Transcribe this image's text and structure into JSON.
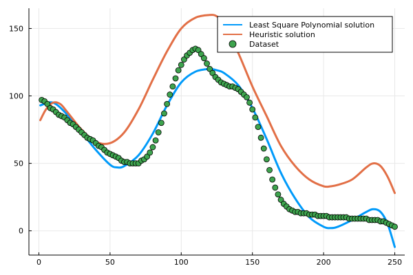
{
  "chart_data": {
    "type": "line",
    "title": "",
    "xlabel": "",
    "ylabel": "",
    "xlim": [
      -7,
      257
    ],
    "ylim": [
      -18,
      165
    ],
    "xticks": [
      0,
      50,
      100,
      150,
      200,
      250
    ],
    "yticks": [
      0,
      50,
      100,
      150
    ],
    "grid": true,
    "legend_position": "top-right",
    "colors": {
      "poly": "#009AFA",
      "heuristic": "#E26F46",
      "dataset": "#3EA44E",
      "marker_edge": "#000000",
      "grid": "#e8e8e8",
      "axis": "#000000"
    },
    "series": [
      {
        "name": "Least Square Polynomial solution",
        "kind": "line",
        "x": [
          1,
          10,
          20,
          30,
          40,
          50,
          55,
          60,
          70,
          80,
          90,
          100,
          110,
          120,
          125,
          130,
          140,
          150,
          160,
          170,
          180,
          190,
          200,
          205,
          210,
          220,
          230,
          235,
          240,
          245,
          250
        ],
        "y": [
          93,
          95,
          86,
          73,
          60,
          49,
          47,
          48,
          56,
          72,
          93,
          110,
          118,
          120,
          119,
          117,
          108,
          91,
          68,
          43,
          24,
          10,
          3,
          2,
          3,
          8,
          14,
          16,
          14,
          5,
          -12
        ]
      },
      {
        "name": "Heuristic solution",
        "kind": "line",
        "x": [
          1,
          5,
          10,
          15,
          20,
          30,
          40,
          50,
          60,
          70,
          80,
          90,
          100,
          110,
          120,
          125,
          130,
          140,
          150,
          160,
          170,
          180,
          190,
          200,
          205,
          210,
          220,
          230,
          235,
          240,
          245,
          250
        ],
        "y": [
          82,
          90,
          95,
          94,
          88,
          75,
          66,
          65,
          73,
          90,
          112,
          133,
          150,
          158,
          160,
          159,
          153,
          132,
          107,
          85,
          63,
          48,
          38,
          33,
          33,
          34,
          38,
          47,
          50,
          48,
          40,
          28
        ]
      },
      {
        "name": "Dataset",
        "kind": "scatter",
        "x": [
          2,
          4,
          6,
          8,
          10,
          12,
          14,
          16,
          18,
          20,
          22,
          24,
          26,
          28,
          30,
          32,
          34,
          36,
          38,
          40,
          42,
          44,
          46,
          48,
          50,
          52,
          54,
          56,
          58,
          60,
          62,
          64,
          66,
          68,
          70,
          72,
          74,
          76,
          78,
          80,
          82,
          84,
          86,
          88,
          90,
          92,
          94,
          96,
          98,
          100,
          102,
          104,
          106,
          108,
          110,
          112,
          114,
          116,
          118,
          120,
          122,
          124,
          126,
          128,
          130,
          132,
          134,
          136,
          138,
          140,
          142,
          144,
          146,
          148,
          150,
          152,
          154,
          156,
          158,
          160,
          162,
          164,
          166,
          168,
          170,
          172,
          174,
          176,
          178,
          180,
          182,
          184,
          186,
          188,
          190,
          192,
          194,
          196,
          198,
          200,
          202,
          204,
          206,
          208,
          210,
          212,
          214,
          216,
          218,
          220,
          222,
          224,
          226,
          228,
          230,
          232,
          234,
          236,
          238,
          240,
          242,
          244,
          246,
          248,
          250
        ],
        "y": [
          97,
          96,
          94,
          91,
          90,
          88,
          86,
          85,
          84,
          82,
          80,
          79,
          77,
          75,
          73,
          71,
          69,
          68,
          67,
          65,
          63,
          62,
          60,
          58,
          57,
          56,
          55,
          54,
          52,
          51,
          51,
          50,
          50,
          50,
          50,
          52,
          53,
          55,
          58,
          62,
          67,
          73,
          80,
          87,
          94,
          101,
          107,
          113,
          119,
          123,
          127,
          130,
          132,
          134,
          135,
          134,
          131,
          128,
          124,
          120,
          117,
          114,
          112,
          110,
          109,
          108,
          107,
          107,
          106,
          105,
          103,
          101,
          99,
          95,
          90,
          84,
          77,
          69,
          61,
          53,
          45,
          38,
          32,
          27,
          23,
          20,
          18,
          16,
          15,
          14,
          14,
          13,
          13,
          13,
          12,
          12,
          12,
          11,
          11,
          11,
          11,
          10,
          10,
          10,
          10,
          10,
          10,
          10,
          9,
          9,
          9,
          9,
          9,
          9,
          9,
          8,
          8,
          8,
          8,
          7,
          7,
          6,
          5,
          4,
          3
        ]
      }
    ]
  }
}
